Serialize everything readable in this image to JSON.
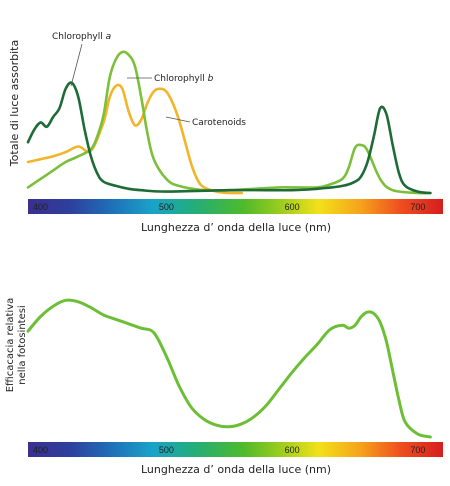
{
  "chart_data": [
    {
      "type": "line",
      "ylabel": "Totale di luce assorbita",
      "xlabel": "Lunghezza d’ onda della luce (nm)",
      "xlim": [
        390,
        720
      ],
      "ylim": [
        0,
        1
      ],
      "x_ticks": [
        400,
        500,
        600,
        700
      ],
      "x_tick_labels": [
        "400",
        "500",
        "600",
        "700"
      ],
      "grid": false,
      "series": [
        {
          "name": "Chlorophyll a",
          "label_parts": [
            "Chlorophyll ",
            "a"
          ],
          "color": "#1e6b38",
          "x": [
            390,
            395,
            400,
            405,
            410,
            415,
            420,
            425,
            430,
            435,
            440,
            445,
            450,
            460,
            470,
            480,
            500,
            550,
            600,
            620,
            640,
            650,
            655,
            660,
            665,
            670,
            675,
            680,
            685,
            690,
            700,
            710
          ],
          "y": [
            0.36,
            0.45,
            0.5,
            0.47,
            0.54,
            0.6,
            0.74,
            0.78,
            0.68,
            0.45,
            0.26,
            0.14,
            0.08,
            0.05,
            0.03,
            0.02,
            0.01,
            0.02,
            0.02,
            0.03,
            0.05,
            0.08,
            0.12,
            0.22,
            0.4,
            0.6,
            0.56,
            0.34,
            0.14,
            0.05,
            0.01,
            0.0
          ]
        },
        {
          "name": "Chlorophyll b",
          "label_parts": [
            "Chlorophyll ",
            "b"
          ],
          "color": "#7bbf3a",
          "x": [
            390,
            400,
            410,
            420,
            430,
            440,
            445,
            450,
            455,
            460,
            465,
            470,
            475,
            480,
            485,
            490,
            500,
            510,
            530,
            550,
            570,
            590,
            600,
            620,
            630,
            640,
            645,
            650,
            655,
            660,
            670,
            680,
            700,
            710
          ],
          "y": [
            0.04,
            0.1,
            0.16,
            0.22,
            0.26,
            0.31,
            0.4,
            0.55,
            0.82,
            0.95,
            1.0,
            0.98,
            0.9,
            0.68,
            0.42,
            0.24,
            0.1,
            0.05,
            0.02,
            0.02,
            0.03,
            0.04,
            0.04,
            0.04,
            0.06,
            0.1,
            0.18,
            0.32,
            0.34,
            0.3,
            0.1,
            0.02,
            0.0,
            0.0
          ]
        },
        {
          "name": "Carotenoids",
          "label_parts": [
            "Carotenoids",
            ""
          ],
          "color": "#f2b52a",
          "x": [
            390,
            400,
            410,
            420,
            430,
            440,
            450,
            455,
            460,
            465,
            470,
            475,
            480,
            485,
            490,
            495,
            500,
            505,
            510,
            515,
            520,
            525,
            530,
            540,
            550,
            560
          ],
          "y": [
            0.22,
            0.24,
            0.26,
            0.29,
            0.33,
            0.3,
            0.5,
            0.68,
            0.76,
            0.74,
            0.58,
            0.48,
            0.52,
            0.64,
            0.72,
            0.74,
            0.72,
            0.64,
            0.52,
            0.36,
            0.2,
            0.09,
            0.04,
            0.01,
            0.0,
            0.0
          ]
        }
      ]
    },
    {
      "type": "line",
      "ylabel_lines": [
        "Efficacacia relativa",
        "nella fotosintesi"
      ],
      "xlabel": "Lunghezza d’ onda della luce (nm)",
      "xlim": [
        390,
        720
      ],
      "ylim": [
        0,
        1
      ],
      "x_ticks": [
        400,
        500,
        600,
        700
      ],
      "x_tick_labels": [
        "400",
        "500",
        "600",
        "700"
      ],
      "grid": false,
      "series": [
        {
          "color": "#6cbf35",
          "x": [
            390,
            400,
            410,
            420,
            430,
            440,
            450,
            460,
            470,
            480,
            490,
            500,
            510,
            520,
            530,
            540,
            550,
            560,
            570,
            580,
            590,
            600,
            610,
            620,
            630,
            640,
            645,
            650,
            655,
            660,
            665,
            670,
            675,
            680,
            685,
            690,
            700,
            710
          ],
          "y": [
            0.72,
            0.82,
            0.89,
            0.93,
            0.92,
            0.88,
            0.83,
            0.8,
            0.77,
            0.74,
            0.71,
            0.55,
            0.35,
            0.2,
            0.12,
            0.08,
            0.07,
            0.09,
            0.14,
            0.22,
            0.33,
            0.44,
            0.54,
            0.63,
            0.73,
            0.76,
            0.74,
            0.76,
            0.82,
            0.85,
            0.84,
            0.78,
            0.65,
            0.45,
            0.25,
            0.1,
            0.02,
            0.0
          ]
        }
      ]
    }
  ]
}
